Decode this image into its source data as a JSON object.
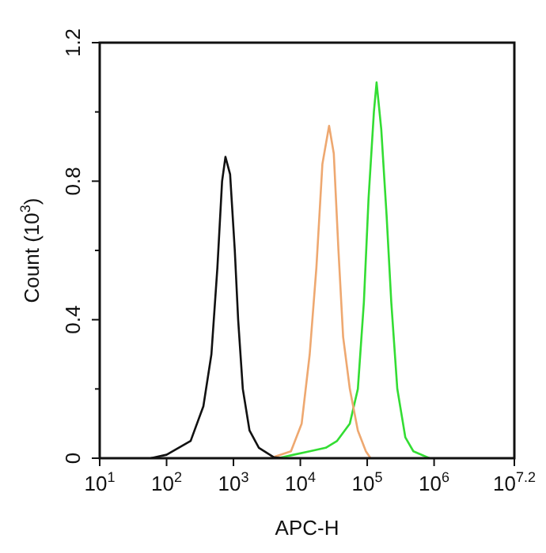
{
  "chart_data": {
    "type": "line",
    "xlabel": "APC-H",
    "ylabel": "Count (10$^{3}$)",
    "log": "x",
    "grid": false,
    "legend": false,
    "marker": "none",
    "line_style": "solid",
    "xlim": [
      10,
      15848932
    ],
    "xticks": [
      {
        "value": 10,
        "label": "10$^{1}$"
      },
      {
        "value": 100,
        "label": "10$^{2}$"
      },
      {
        "value": 1000,
        "label": "10$^{3}$"
      },
      {
        "value": 10000,
        "label": "10$^{4}$"
      },
      {
        "value": 100000,
        "label": "10$^{5}$"
      },
      {
        "value": 1000000,
        "label": "10$^{6}$"
      },
      {
        "value": 15848932,
        "label": "10$^{7.2}$"
      }
    ],
    "ylim": [
      0,
      1.2
    ],
    "yticks": [
      0,
      {
        "value": 0.2,
        "label": null
      },
      0.4,
      {
        "value": 0.6,
        "label": null
      },
      0.8,
      {
        "value": 1.0,
        "label": null
      },
      1.2
    ],
    "series": [
      {
        "color": "#111111",
        "x": [
          58,
          100,
          229,
          355,
          468,
          575,
          676,
          759,
          891,
          1047,
          1175,
          1380,
          1738,
          2399,
          3981,
          5495
        ],
        "values": [
          0,
          0.01,
          0.05,
          0.15,
          0.3,
          0.55,
          0.8,
          0.87,
          0.82,
          0.6,
          0.4,
          0.2,
          0.08,
          0.03,
          0.003,
          0
        ]
      },
      {
        "color": "#eea870",
        "x": [
          3548,
          7244,
          10471,
          13804,
          17378,
          21380,
          26915,
          31623,
          37154,
          43652,
          54954,
          72444,
          95499,
          112202
        ],
        "values": [
          0,
          0.02,
          0.1,
          0.3,
          0.55,
          0.85,
          0.96,
          0.88,
          0.6,
          0.35,
          0.2,
          0.08,
          0.02,
          0
        ]
      },
      {
        "color": "#33dd33",
        "x": [
          4677,
          7943,
          13804,
          23988,
          35481,
          54954,
          72444,
          89125,
          104713,
          125893,
          138038,
          162181,
          194984,
          229087,
          281838,
          371535,
          489779,
          851138
        ],
        "values": [
          0,
          0.01,
          0.02,
          0.03,
          0.05,
          0.1,
          0.2,
          0.45,
          0.75,
          1.0,
          1.085,
          0.95,
          0.7,
          0.45,
          0.2,
          0.06,
          0.02,
          0
        ]
      }
    ]
  }
}
